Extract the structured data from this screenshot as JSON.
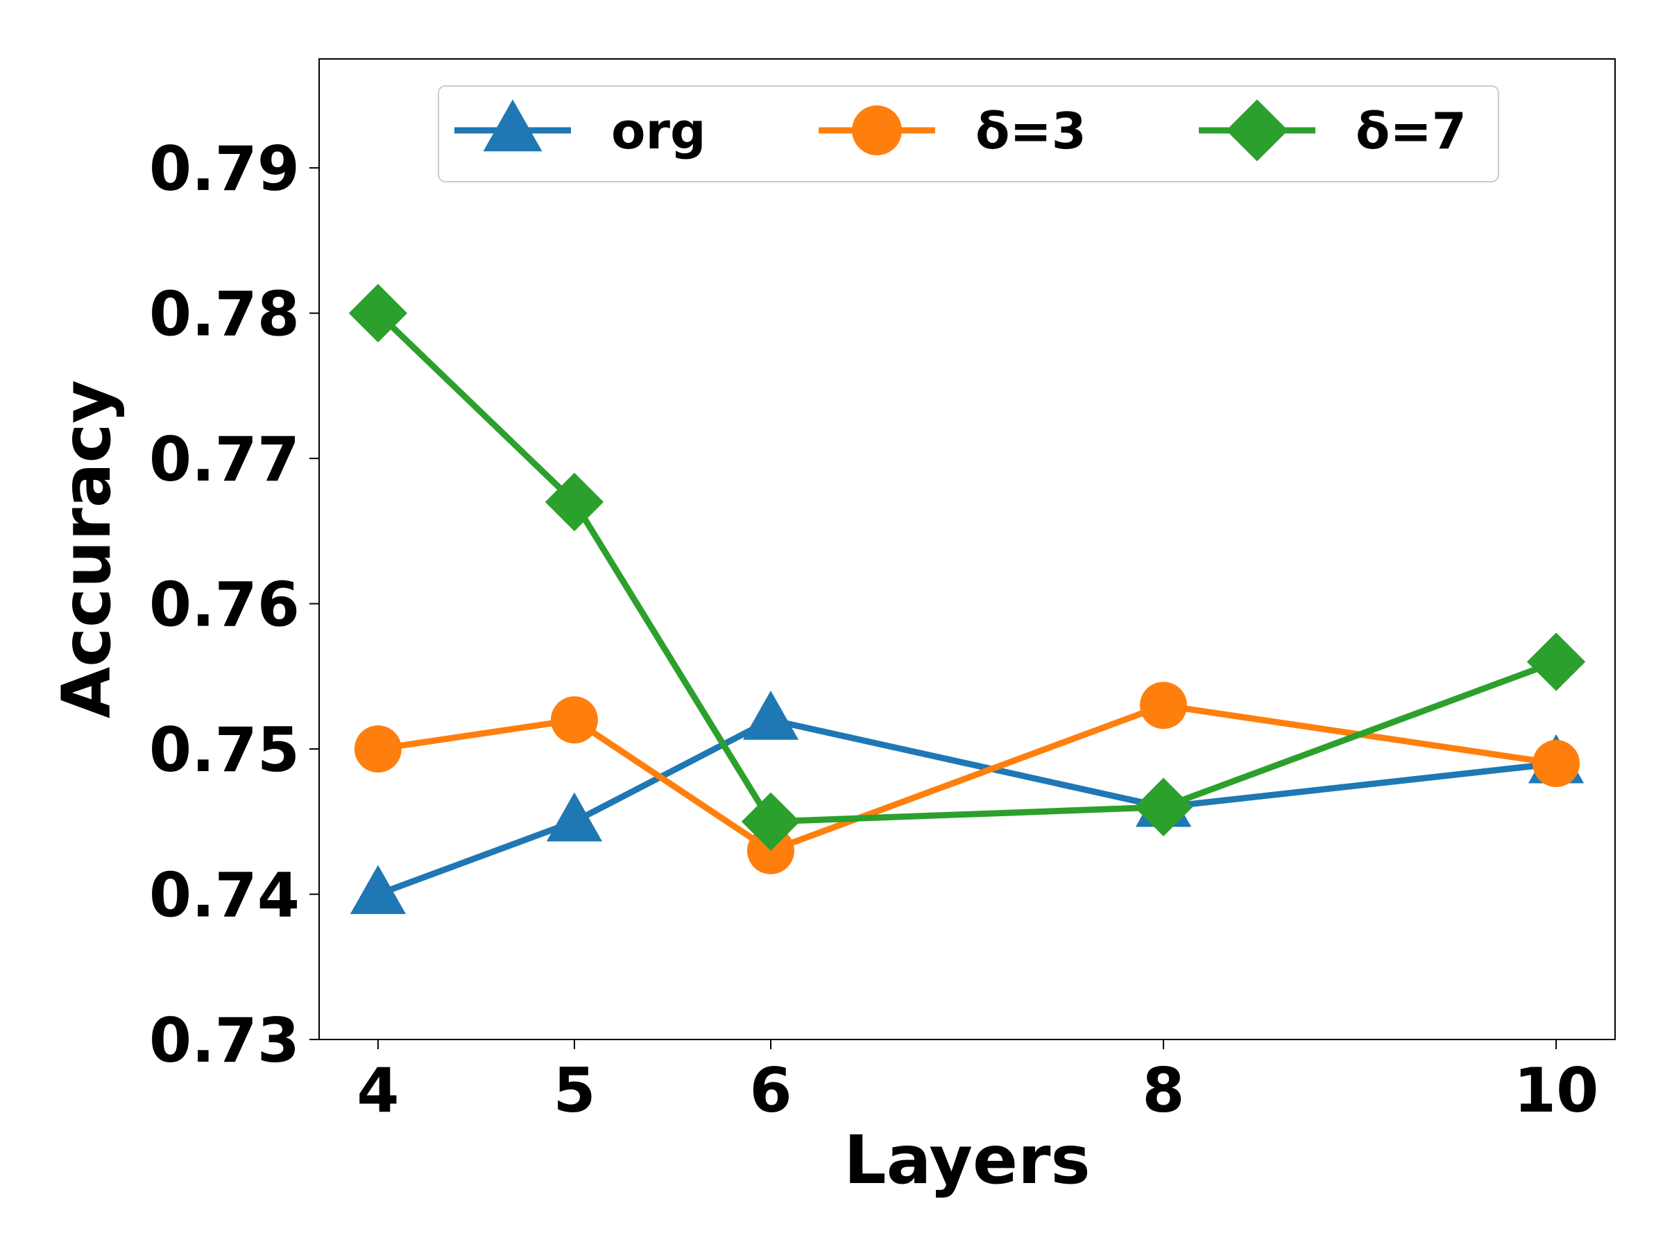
{
  "chart_data": {
    "type": "line",
    "title": "",
    "xlabel": "Layers",
    "ylabel": "Accuracy",
    "x": [
      4,
      5,
      6,
      8,
      10
    ],
    "xticks": [
      "4",
      "5",
      "6",
      "8",
      "10"
    ],
    "xlim": [
      3.7,
      10.3
    ],
    "ylim": [
      0.73,
      0.7975
    ],
    "yticks": [
      "0.73",
      "0.74",
      "0.75",
      "0.76",
      "0.77",
      "0.78",
      "0.79"
    ],
    "grid": false,
    "legend_position": "top-center",
    "series": [
      {
        "name": "org",
        "values": [
          0.74,
          0.745,
          0.752,
          0.746,
          0.749
        ],
        "color": "#1f77b4",
        "marker": "triangle"
      },
      {
        "name": "δ=3",
        "values": [
          0.75,
          0.752,
          0.743,
          0.753,
          0.749
        ],
        "color": "#ff7f0e",
        "marker": "circle"
      },
      {
        "name": "δ=7",
        "values": [
          0.78,
          0.767,
          0.745,
          0.746,
          0.756
        ],
        "color": "#2ca02c",
        "marker": "diamond"
      }
    ]
  }
}
